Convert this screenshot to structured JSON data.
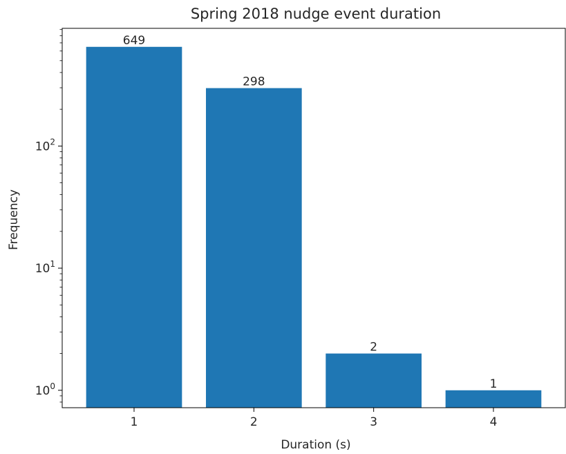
{
  "chart_data": {
    "type": "bar",
    "title": "Spring 2018 nudge event duration",
    "xlabel": "Duration (s)",
    "ylabel": "Frequency",
    "categories": [
      "1",
      "2",
      "3",
      "4"
    ],
    "values": [
      649,
      298,
      2,
      1
    ],
    "data_labels": [
      "649",
      "298",
      "2",
      "1"
    ],
    "y_scale": "log",
    "y_ticks": [
      {
        "base": "10",
        "exp": "0",
        "value": 1
      },
      {
        "base": "10",
        "exp": "1",
        "value": 10
      },
      {
        "base": "10",
        "exp": "2",
        "value": 100
      }
    ],
    "ylim": [
      0.72,
      920
    ],
    "grid": false,
    "bar_color": "#1f77b4"
  }
}
